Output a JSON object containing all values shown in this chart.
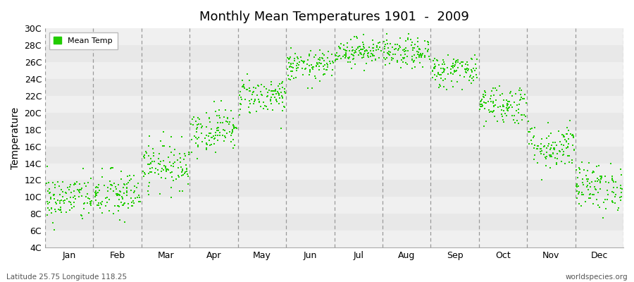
{
  "title": "Monthly Mean Temperatures 1901  -  2009",
  "ylabel": "Temperature",
  "bottom_left": "Latitude 25.75 Longitude 118.25",
  "bottom_right": "worldspecies.org",
  "legend_label": "Mean Temp",
  "dot_color": "#22cc00",
  "background_color": "#ffffff",
  "band_colors": [
    "#f0f0f0",
    "#e8e8e8"
  ],
  "ylim": [
    4,
    30
  ],
  "yticks": [
    4,
    6,
    8,
    10,
    12,
    14,
    16,
    18,
    20,
    22,
    24,
    26,
    28,
    30
  ],
  "ytick_labels": [
    "4C",
    "6C",
    "8C",
    "10C",
    "12C",
    "14C",
    "16C",
    "18C",
    "20C",
    "22C",
    "24C",
    "26C",
    "28C",
    "30C"
  ],
  "months": [
    "Jan",
    "Feb",
    "Mar",
    "Apr",
    "May",
    "Jun",
    "Jul",
    "Aug",
    "Sep",
    "Oct",
    "Nov",
    "Dec"
  ],
  "n_years": 109,
  "seed": 42,
  "mean_temps": [
    9.8,
    10.2,
    13.8,
    18.0,
    22.0,
    25.5,
    27.3,
    27.0,
    25.0,
    21.0,
    16.0,
    11.2
  ],
  "std_temps": [
    1.4,
    1.5,
    1.4,
    1.3,
    1.1,
    0.9,
    0.8,
    0.9,
    1.0,
    1.2,
    1.4,
    1.4
  ]
}
